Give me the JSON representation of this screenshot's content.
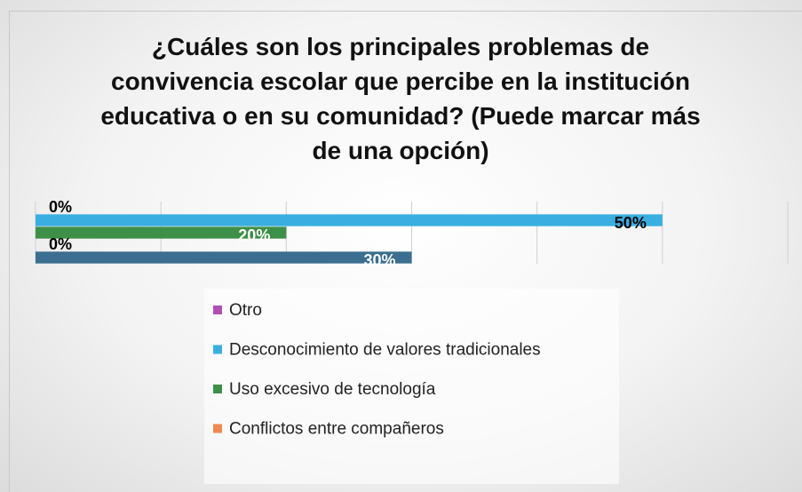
{
  "chart_data": {
    "type": "bar",
    "orientation": "horizontal",
    "title": "¿Cuáles son los principales problemas de convivencia escolar que percibe en la institución educativa o en su comunidad? (Puede marcar más de una opción)",
    "series": [
      {
        "name": "Otro",
        "color": "#b14fb5",
        "label_color": "#000000",
        "values": [
          0
        ],
        "value_labels": [
          "0%"
        ]
      },
      {
        "name": "Desconocimiento de valores tradicionales",
        "color": "#3aaee0",
        "label_color": "#000000",
        "values": [
          50
        ],
        "value_labels": [
          "50%"
        ]
      },
      {
        "name": "Uso excesivo de tecnología",
        "color": "#3e8f48",
        "label_color": "#ffffff",
        "values": [
          20
        ],
        "value_labels": [
          "20%"
        ]
      },
      {
        "name": "Conflictos entre compañeros",
        "color": "#ee8a50",
        "label_color": "#000000",
        "values": [
          0
        ],
        "value_labels": [
          "0%"
        ]
      },
      {
        "color": "#3b6e8f",
        "label_color": "#ffffff",
        "values": [
          30
        ],
        "value_labels": [
          "30%"
        ]
      }
    ],
    "xlim": [
      0,
      60
    ],
    "xticks": [
      0,
      10,
      20,
      30,
      40,
      50,
      60
    ],
    "grid": true
  }
}
